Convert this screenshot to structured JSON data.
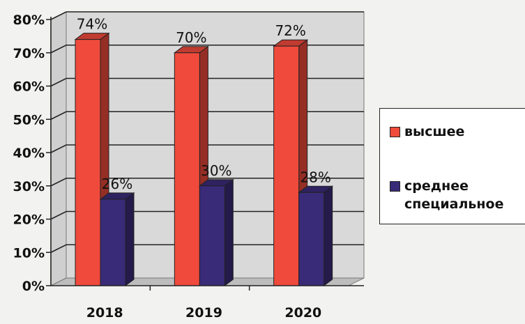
{
  "chart_data": {
    "type": "bar",
    "categories": [
      "2018",
      "2019",
      "2020"
    ],
    "series": [
      {
        "name": "высшее",
        "values": [
          74,
          70,
          72
        ],
        "labels": [
          "74%",
          "70%",
          "72%"
        ],
        "color": "#f04a3c"
      },
      {
        "name": "среднее\nспециальное",
        "values": [
          26,
          30,
          28
        ],
        "labels": [
          "26%",
          "30%",
          "28%"
        ],
        "color": "#3a2b78"
      }
    ],
    "ylim": [
      0,
      80
    ],
    "yticks": [
      0,
      10,
      20,
      30,
      40,
      50,
      60,
      70,
      80
    ],
    "ytick_labels": [
      "0%",
      "10%",
      "20%",
      "30%",
      "40%",
      "50%",
      "60%",
      "70%",
      "80%"
    ],
    "grid": true,
    "legend_position": "right",
    "background_color": "#d9d9d9"
  }
}
